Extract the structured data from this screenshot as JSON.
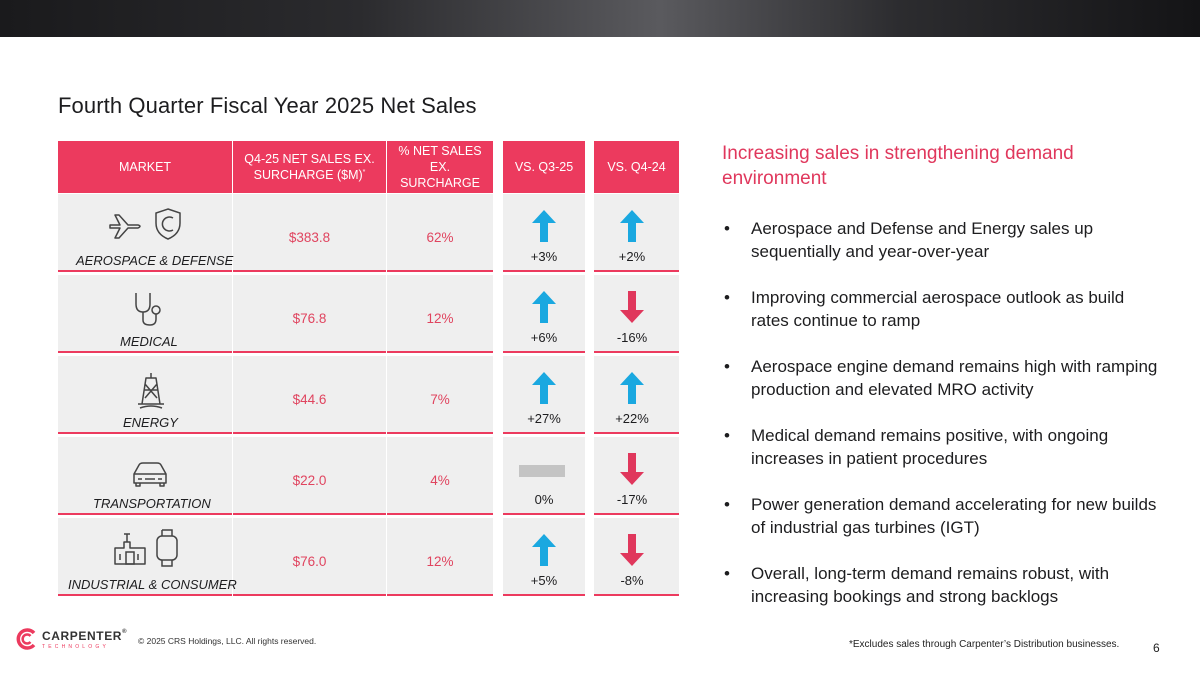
{
  "title": "Fourth Quarter Fiscal Year 2025 Net Sales",
  "table": {
    "headers": {
      "market": "MARKET",
      "sales": "Q4-25 NET SALES EX. SURCHARGE ($M)",
      "sales_mark": "*",
      "percent": "% NET SALES EX. SURCHARGE",
      "vs_q3": "VS. Q3-25",
      "vs_q4": "VS. Q4-24"
    },
    "rows": [
      {
        "market": "AEROSPACE & DEFENSE",
        "sales": "$383.8",
        "percent": "62%",
        "vs_q3": "+3%",
        "vs_q3_dir": "up",
        "vs_q4": "+2%",
        "vs_q4_dir": "up",
        "icons": [
          "airplane-icon",
          "shield-icon"
        ]
      },
      {
        "market": "MEDICAL",
        "sales": "$76.8",
        "percent": "12%",
        "vs_q3": "+6%",
        "vs_q3_dir": "up",
        "vs_q4": "-16%",
        "vs_q4_dir": "down",
        "icons": [
          "stethoscope-icon"
        ]
      },
      {
        "market": "ENERGY",
        "sales": "$44.6",
        "percent": "7%",
        "vs_q3": "+27%",
        "vs_q3_dir": "up",
        "vs_q4": "+22%",
        "vs_q4_dir": "up",
        "icons": [
          "oil-rig-icon"
        ]
      },
      {
        "market": "TRANSPORTATION",
        "sales": "$22.0",
        "percent": "4%",
        "vs_q3": "0%",
        "vs_q3_dir": "flat",
        "vs_q4": "-17%",
        "vs_q4_dir": "down",
        "icons": [
          "car-icon"
        ]
      },
      {
        "market": "INDUSTRIAL & CONSUMER",
        "sales": "$76.0",
        "percent": "12%",
        "vs_q3": "+5%",
        "vs_q3_dir": "up",
        "vs_q4": "-8%",
        "vs_q4_dir": "down",
        "icons": [
          "factory-icon",
          "smartwatch-icon"
        ]
      }
    ]
  },
  "panel": {
    "heading": "Increasing sales in strengthening demand environment",
    "bullets": [
      "Aerospace and Defense and Energy sales up sequentially and year-over-year",
      "Improving commercial aerospace outlook as build rates continue to ramp",
      "Aerospace engine demand remains high with ramping production and elevated MRO activity",
      "Medical demand remains positive, with ongoing increases in patient procedures",
      "Power generation demand accelerating for new builds of industrial gas turbines (IGT)",
      "Overall, long-term demand remains robust, with increasing bookings and strong backlogs"
    ]
  },
  "footer": {
    "logo_name": "CARPENTER",
    "logo_mark": "®",
    "logo_sub": "TECHNOLOGY",
    "copyright": "© 2025 CRS Holdings, LLC. All rights reserved.",
    "footnote": "*Excludes sales through Carpenter’s Distribution businesses.",
    "page_number": "6"
  },
  "colors": {
    "accent": "#ec3a5e",
    "up_arrow": "#1aa8e0",
    "down_arrow": "#e0375c",
    "flat_bar": "#c4c4c4",
    "cell_bg": "#efefef"
  }
}
